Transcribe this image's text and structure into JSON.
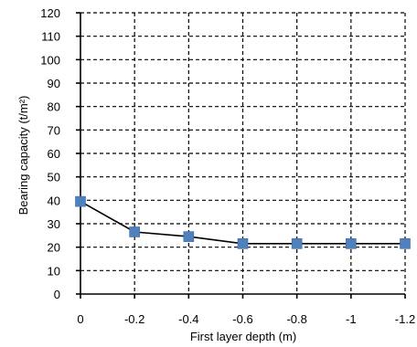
{
  "chart_data": {
    "type": "line",
    "title": "",
    "xlabel": "First layer depth (m)",
    "ylabel": "Bearing capacity (t/m²)",
    "x": [
      0,
      -0.2,
      -0.4,
      -0.6,
      -0.8,
      -1,
      -1.2
    ],
    "x_tick_labels": [
      "0",
      "-0.2",
      "-0.4",
      "-0.6",
      "-0.8",
      "-1",
      "-1.2"
    ],
    "xlim": [
      0,
      -1.2
    ],
    "ylim": [
      0,
      120
    ],
    "y_ticks": [
      0,
      10,
      20,
      30,
      40,
      50,
      60,
      70,
      80,
      90,
      100,
      110,
      120
    ],
    "grid": true,
    "legend": "none",
    "series": [
      {
        "values": [
          39.5,
          26.5,
          24.5,
          21.5,
          21.5,
          21.5,
          21.5
        ],
        "color": "#000000",
        "marker": "square",
        "marker_color": "#4f81bd"
      }
    ]
  }
}
